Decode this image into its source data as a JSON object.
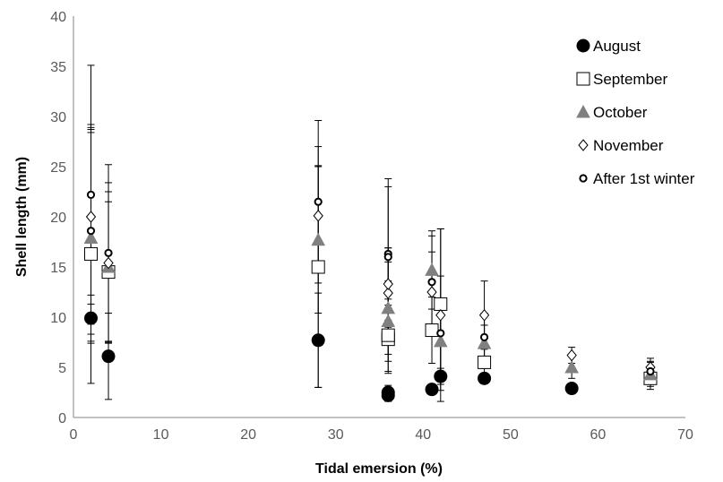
{
  "chart_data": {
    "type": "scatter",
    "title": "",
    "xlabel": "Tidal emersion (%)",
    "ylabel": "Shell length (mm)",
    "xlim": [
      0,
      70
    ],
    "ylim": [
      0,
      40
    ],
    "xticks": [
      0,
      10,
      20,
      30,
      40,
      50,
      60,
      70
    ],
    "yticks": [
      0,
      5,
      10,
      15,
      20,
      25,
      30,
      35,
      40
    ],
    "grid": false,
    "legend_position": "top-right",
    "series": [
      {
        "name": "August",
        "marker": "filled-circle",
        "color": "#000000",
        "points": [
          {
            "x": 2,
            "y": 9.9,
            "err": 2.3
          },
          {
            "x": 4,
            "y": 6.1,
            "err": 4.3
          },
          {
            "x": 28,
            "y": 7.7,
            "err": 4.7
          },
          {
            "x": 36,
            "y": 2.2,
            "err": 0.6
          },
          {
            "x": 36,
            "y": 2.5,
            "err": 0.7
          },
          {
            "x": 41,
            "y": 2.8,
            "err": 0.5
          },
          {
            "x": 42,
            "y": 4.1,
            "err": 0.8
          },
          {
            "x": 47,
            "y": 3.9,
            "err": 0.5
          },
          {
            "x": 57,
            "y": 2.9,
            "err": 0.5
          }
        ]
      },
      {
        "name": "September",
        "marker": "open-square",
        "color": "#000000",
        "points": [
          {
            "x": 2,
            "y": 16.3,
            "err": 12.9
          },
          {
            "x": 4,
            "y": 14.5,
            "err": 7.0
          },
          {
            "x": 28,
            "y": 15.0,
            "err": 12.0
          },
          {
            "x": 36,
            "y": 7.8,
            "err": 3.4
          },
          {
            "x": 36,
            "y": 8.2,
            "err": 3.6
          },
          {
            "x": 41,
            "y": 8.7,
            "err": 3.3
          },
          {
            "x": 42,
            "y": 11.3,
            "err": 7.5
          },
          {
            "x": 47,
            "y": 5.5,
            "err": 1.5
          },
          {
            "x": 66,
            "y": 3.9,
            "err": 1.1
          }
        ]
      },
      {
        "name": "October",
        "marker": "filled-triangle",
        "color": "#808080",
        "points": [
          {
            "x": 2,
            "y": 17.9,
            "err": 10.5
          },
          {
            "x": 4,
            "y": 15.0,
            "err": 7.5
          },
          {
            "x": 28,
            "y": 17.7,
            "err": 7.3
          },
          {
            "x": 36,
            "y": 9.6,
            "err": 4.0
          },
          {
            "x": 36,
            "y": 10.9,
            "err": 4.6
          },
          {
            "x": 41,
            "y": 14.7,
            "err": 3.9
          },
          {
            "x": 42,
            "y": 7.6,
            "err": 3.3
          },
          {
            "x": 47,
            "y": 7.4,
            "err": 1.8
          },
          {
            "x": 57,
            "y": 5.0,
            "err": 1.1
          },
          {
            "x": 66,
            "y": 4.3,
            "err": 1.2
          }
        ]
      },
      {
        "name": "November",
        "marker": "open-diamond",
        "color": "#000000",
        "points": [
          {
            "x": 2,
            "y": 20.0,
            "err": 8.7
          },
          {
            "x": 4,
            "y": 15.4,
            "err": 8.0
          },
          {
            "x": 28,
            "y": 20.1,
            "err": 5.0
          },
          {
            "x": 36,
            "y": 12.4,
            "err": 4.5
          },
          {
            "x": 36,
            "y": 13.3,
            "err": 3.6
          },
          {
            "x": 41,
            "y": 12.5,
            "err": 4.0
          },
          {
            "x": 42,
            "y": 10.2,
            "err": 8.6
          },
          {
            "x": 47,
            "y": 10.2,
            "err": 3.4
          },
          {
            "x": 57,
            "y": 6.2,
            "err": 0.8
          },
          {
            "x": 66,
            "y": 5.0,
            "err": 0.9
          }
        ]
      },
      {
        "name": "After 1st winter",
        "marker": "small-open-circle",
        "color": "#000000",
        "points": [
          {
            "x": 2,
            "y": 22.2,
            "err": 12.9
          },
          {
            "x": 2,
            "y": 18.6,
            "err": 10.3
          },
          {
            "x": 4,
            "y": 16.4,
            "err": 8.8
          },
          {
            "x": 28,
            "y": 21.5,
            "err": 8.1
          },
          {
            "x": 36,
            "y": 16.3,
            "err": 7.5
          },
          {
            "x": 36,
            "y": 16.0,
            "err": 7.0
          },
          {
            "x": 41,
            "y": 13.5,
            "err": 4.6
          },
          {
            "x": 42,
            "y": 8.4,
            "err": 5.7
          },
          {
            "x": 47,
            "y": 8.0,
            "err": 2.4
          },
          {
            "x": 66,
            "y": 4.6,
            "err": 1.0
          }
        ]
      }
    ]
  }
}
